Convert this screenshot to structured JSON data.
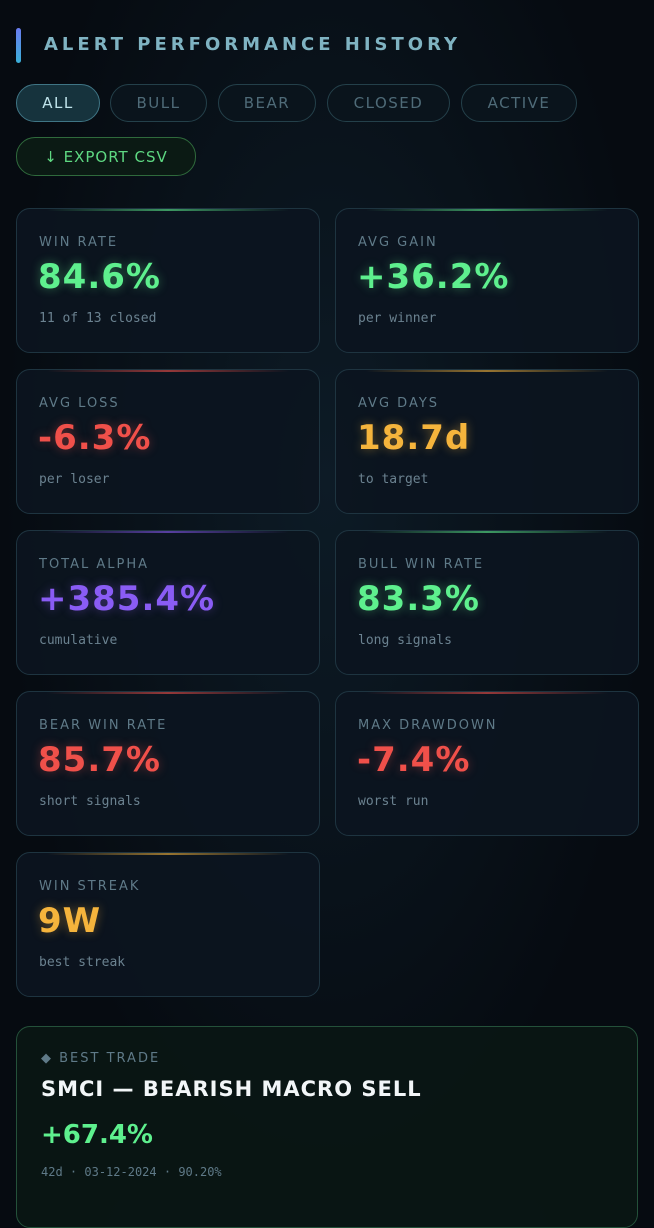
{
  "header": {
    "title": "ALERT PERFORMANCE HISTORY"
  },
  "filters": [
    "ALL",
    "BULL",
    "BEAR",
    "CLOSED",
    "ACTIVE"
  ],
  "export": "↓ EXPORT CSV",
  "stats": [
    {
      "label": "WIN RATE",
      "value": "84.6%",
      "sub": "11 of 13 closed",
      "color": "#5ef08e"
    },
    {
      "label": "AVG GAIN",
      "value": "+36.2%",
      "sub": "per winner",
      "color": "#5ef08e"
    },
    {
      "label": "AVG LOSS",
      "value": "-6.3%",
      "sub": "per loser",
      "color": "#f0504a"
    },
    {
      "label": "AVG DAYS",
      "value": "18.7d",
      "sub": "to target",
      "color": "#f5b43c"
    },
    {
      "label": "TOTAL ALPHA",
      "value": "+385.4%",
      "sub": "cumulative",
      "color": "#8a5cf5"
    },
    {
      "label": "BULL WIN RATE",
      "value": "83.3%",
      "sub": "long signals",
      "color": "#5ef08e"
    },
    {
      "label": "BEAR WIN RATE",
      "value": "85.7%",
      "sub": "short signals",
      "color": "#f0504a"
    },
    {
      "label": "MAX DRAWDOWN",
      "value": "-7.4%",
      "sub": "worst run",
      "color": "#f0504a"
    },
    {
      "label": "WIN STREAK",
      "value": "9W",
      "sub": "best streak",
      "color": "#f5b43c"
    }
  ],
  "best_trade": {
    "label": "BEST TRADE",
    "title": "SMCI — BEARISH MACRO SELL",
    "value": "+67.4%",
    "meta": [
      "42d",
      "03-12-2024",
      "90.20%"
    ]
  }
}
